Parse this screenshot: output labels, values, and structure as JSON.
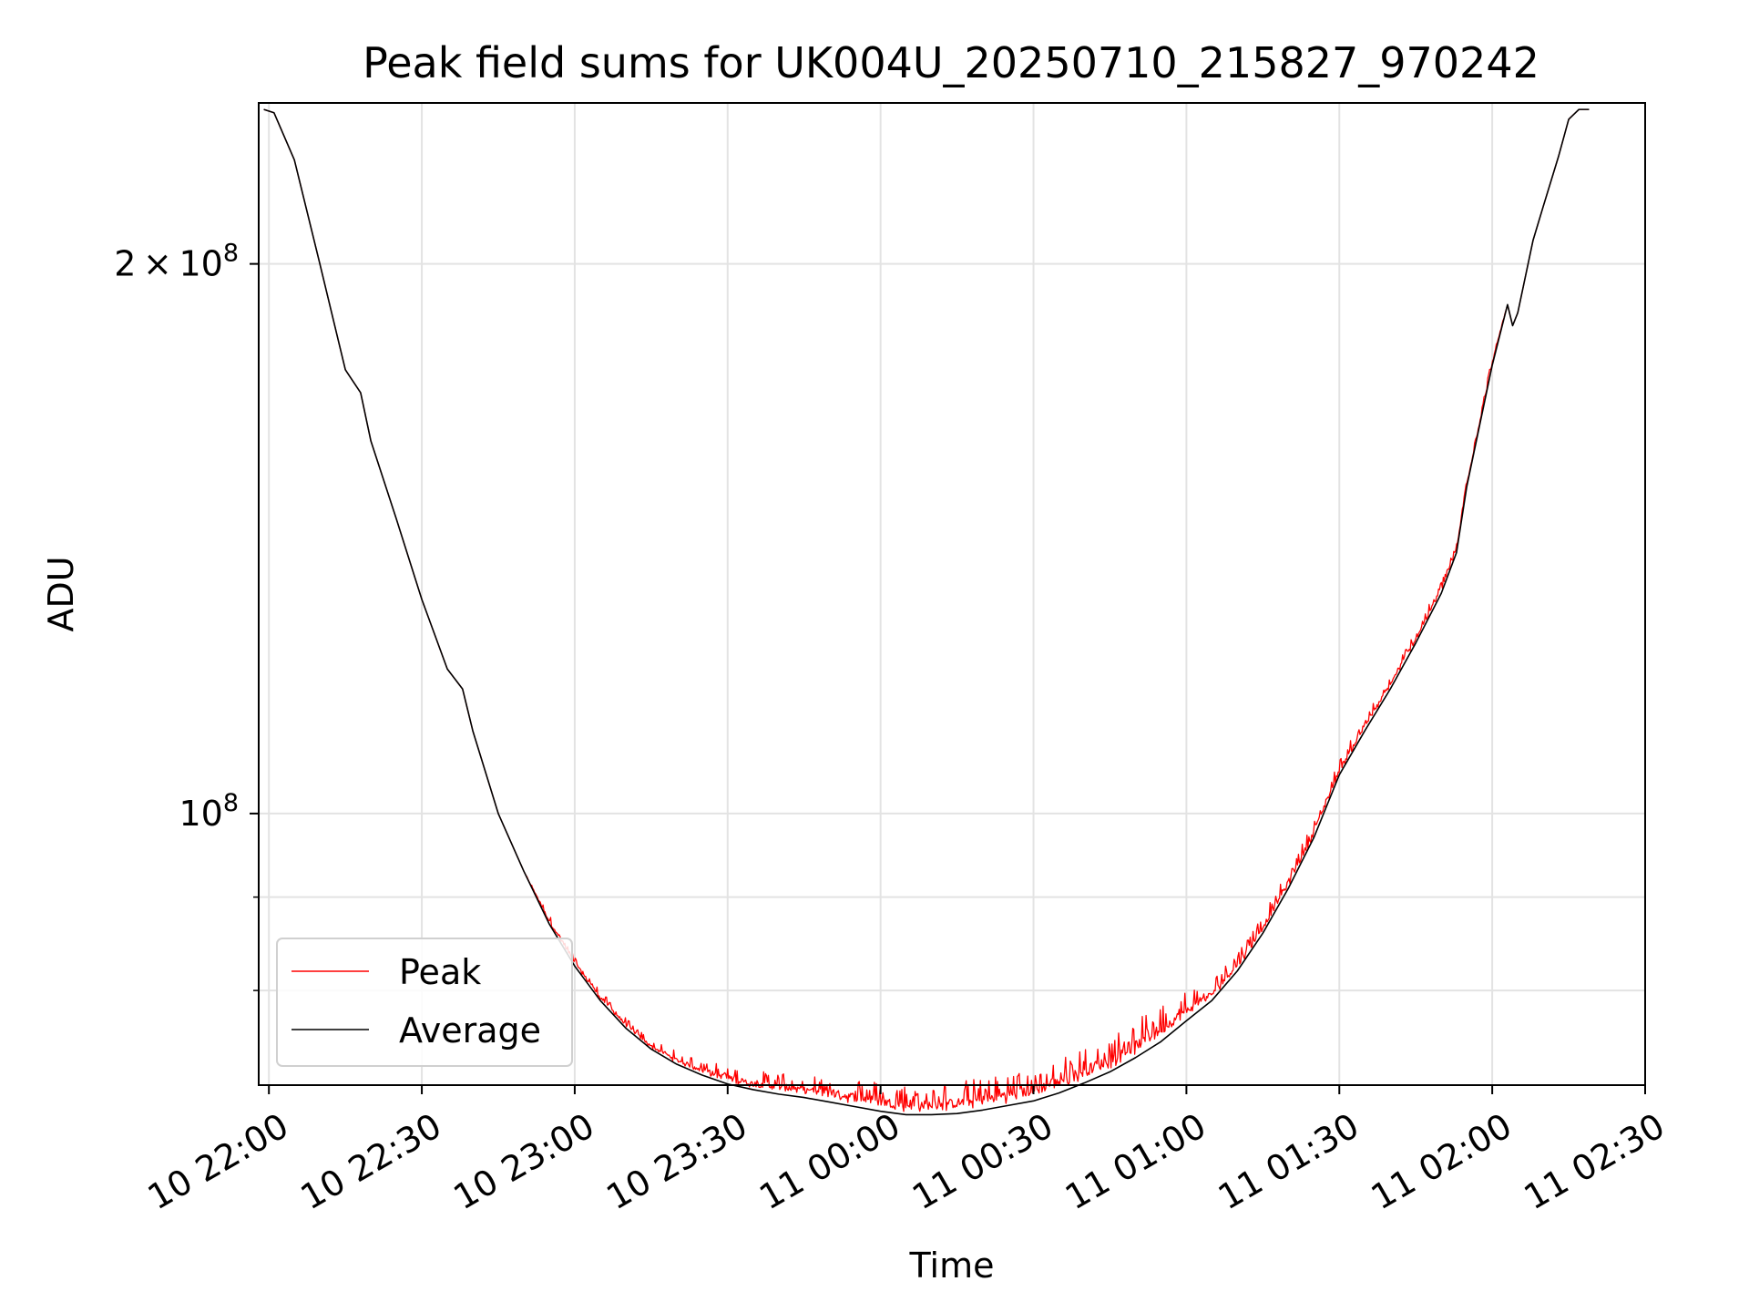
{
  "chart_data": {
    "type": "line",
    "title": "Peak field sums for UK004U_20250710_215827_970242",
    "xlabel": "Time",
    "ylabel": "ADU",
    "x_range": [
      "2025-07-10 21:58",
      "2025-07-11 02:30"
    ],
    "y_scale": "log",
    "ylim": [
      71000000,
      245000000
    ],
    "grid": true,
    "legend_position": "lower-left",
    "x_ticks": [
      "10 22:00",
      "10 22:30",
      "10 23:00",
      "10 23:30",
      "11 00:00",
      "11 00:30",
      "11 01:00",
      "11 01:30",
      "11 02:00",
      "11 02:30"
    ],
    "y_major_ticks": [
      {
        "value": 200000000,
        "mantissa": "2",
        "exponent": "8"
      },
      {
        "value": 100000000,
        "mantissa": "",
        "exponent": "8"
      }
    ],
    "y_minor_ticks": [
      90000000,
      80000000,
      70000000,
      60000000
    ],
    "series": [
      {
        "name": "Peak",
        "color": "#ff0000",
        "noisy": true,
        "x": [
          "21:59",
          "22:01",
          "22:05",
          "22:10",
          "22:15",
          "22:18",
          "22:20",
          "22:25",
          "22:30",
          "22:35",
          "22:38",
          "22:40",
          "22:45",
          "22:50",
          "22:55",
          "23:00",
          "23:05",
          "23:10",
          "23:15",
          "23:20",
          "23:25",
          "23:30",
          "23:35",
          "23:40",
          "23:45",
          "23:50",
          "23:55",
          "00:00",
          "00:05",
          "00:10",
          "00:15",
          "00:20",
          "00:25",
          "00:30",
          "00:35",
          "00:40",
          "00:45",
          "00:50",
          "00:55",
          "01:00",
          "01:05",
          "01:10",
          "01:15",
          "01:20",
          "01:25",
          "01:30",
          "01:35",
          "01:40",
          "01:45",
          "01:50",
          "01:53",
          "01:55",
          "02:00",
          "02:03",
          "02:04",
          "02:05",
          "02:08",
          "02:10",
          "02:13",
          "02:15",
          "02:17",
          "02:19"
        ],
        "values": [
          243000000,
          242000000,
          228000000,
          200000000,
          175000000,
          170000000,
          160000000,
          145000000,
          131000000,
          120000000,
          117000000,
          111000000,
          100000000,
          93000000,
          87500000,
          83000000,
          79500000,
          76800000,
          74700000,
          73500000,
          72600000,
          71900000,
          71400000,
          71200000,
          70900000,
          70700000,
          70400000,
          70000000,
          69700000,
          69700000,
          69900000,
          70200000,
          70600000,
          71000000,
          71800000,
          72800000,
          73800000,
          75200000,
          76800000,
          78500000,
          80000000,
          83000000,
          87000000,
          92000000,
          98000000,
          106000000,
          112000000,
          118000000,
          125000000,
          133000000,
          140000000,
          152000000,
          177000000,
          190000000,
          185000000,
          188000000,
          206000000,
          215000000,
          229000000,
          240000000,
          243000000,
          243000000
        ]
      },
      {
        "name": "Average",
        "color": "#000000",
        "noisy": false,
        "x": [
          "21:59",
          "22:01",
          "22:05",
          "22:10",
          "22:15",
          "22:18",
          "22:20",
          "22:25",
          "22:30",
          "22:35",
          "22:38",
          "22:40",
          "22:45",
          "22:50",
          "22:55",
          "23:00",
          "23:05",
          "23:10",
          "23:15",
          "23:20",
          "23:25",
          "23:30",
          "23:35",
          "23:40",
          "23:45",
          "23:50",
          "23:55",
          "00:00",
          "00:05",
          "00:10",
          "00:15",
          "00:20",
          "00:25",
          "00:30",
          "00:35",
          "00:40",
          "00:45",
          "00:50",
          "00:55",
          "01:00",
          "01:05",
          "01:10",
          "01:15",
          "01:20",
          "01:25",
          "01:30",
          "01:35",
          "01:40",
          "01:45",
          "01:50",
          "01:53",
          "01:55",
          "02:00",
          "02:03",
          "02:04",
          "02:05",
          "02:08",
          "02:10",
          "02:13",
          "02:15",
          "02:17",
          "02:19"
        ],
        "values": [
          243000000,
          242000000,
          228000000,
          200000000,
          175000000,
          170000000,
          160000000,
          145000000,
          131000000,
          120000000,
          117000000,
          111000000,
          100000000,
          93000000,
          87000000,
          82500000,
          79000000,
          76300000,
          74300000,
          72900000,
          71900000,
          71100000,
          70600000,
          70200000,
          69900000,
          69500000,
          69100000,
          68700000,
          68400000,
          68400000,
          68500000,
          68800000,
          69200000,
          69600000,
          70300000,
          71200000,
          72200000,
          73500000,
          75000000,
          77000000,
          79000000,
          82000000,
          86000000,
          91000000,
          97000000,
          105000000,
          111000000,
          117000000,
          124000000,
          132000000,
          139000000,
          151000000,
          176000000,
          190000000,
          185000000,
          188000000,
          206000000,
          215000000,
          229000000,
          240000000,
          243000000,
          243000000
        ]
      }
    ]
  }
}
